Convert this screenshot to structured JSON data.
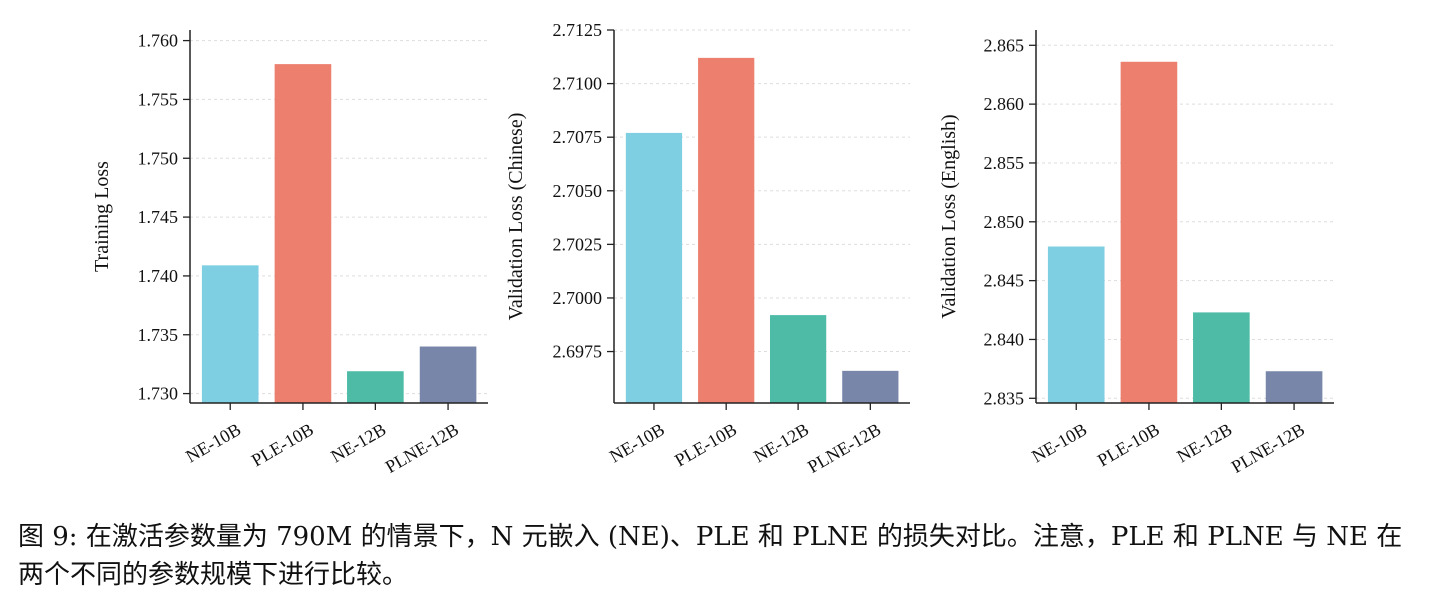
{
  "caption": "图 9: 在激活参数量为 790M 的情景下，N 元嵌入 (NE)、PLE 和 PLNE 的损失对比。注意，PLE 和 PLNE 与 NE 在两个不同的参数规模下进行比较。",
  "colors": {
    "NE-10B": "#7fcfe2",
    "PLE-10B": "#ec7f6e",
    "NE-12B": "#4dbba6",
    "PLNE-12B": "#7886aa",
    "grid": "#dddddd",
    "axis": "#222222"
  },
  "chart_data": [
    {
      "type": "bar",
      "categories": [
        "NE-10B",
        "PLE-10B",
        "NE-12B",
        "PLNE-12B"
      ],
      "values": [
        1.7409,
        1.758,
        1.7319,
        1.734
      ],
      "title": "",
      "xlabel": "",
      "ylabel": "Training Loss",
      "ylim": [
        1.7292,
        1.7609
      ],
      "yticks": [
        1.73,
        1.735,
        1.74,
        1.745,
        1.75,
        1.755,
        1.76
      ],
      "ytick_labels": [
        "1.730",
        "1.735",
        "1.740",
        "1.745",
        "1.750",
        "1.755",
        "1.760"
      ],
      "grid": true
    },
    {
      "type": "bar",
      "categories": [
        "NE-10B",
        "PLE-10B",
        "NE-12B",
        "PLNE-12B"
      ],
      "values": [
        2.7077,
        2.7112,
        2.6992,
        2.6966
      ],
      "title": "",
      "xlabel": "",
      "ylabel": "Validation Loss (Chinese)",
      "ylim": [
        2.6951,
        2.7125
      ],
      "yticks": [
        2.6975,
        2.7,
        2.7025,
        2.705,
        2.7075,
        2.71,
        2.7125
      ],
      "ytick_labels": [
        "2.6975",
        "2.7000",
        "2.7025",
        "2.7050",
        "2.7075",
        "2.7100",
        "2.7125"
      ],
      "grid": true
    },
    {
      "type": "bar",
      "categories": [
        "NE-10B",
        "PLE-10B",
        "NE-12B",
        "PLNE-12B"
      ],
      "values": [
        2.8479,
        2.8636,
        2.8423,
        2.8373
      ],
      "title": "",
      "xlabel": "",
      "ylabel": "Validation Loss (English)",
      "ylim": [
        2.8346,
        2.8663
      ],
      "yticks": [
        2.835,
        2.84,
        2.845,
        2.85,
        2.855,
        2.86,
        2.865
      ],
      "ytick_labels": [
        "2.835",
        "2.840",
        "2.845",
        "2.850",
        "2.855",
        "2.860",
        "2.865"
      ],
      "grid": true
    }
  ]
}
